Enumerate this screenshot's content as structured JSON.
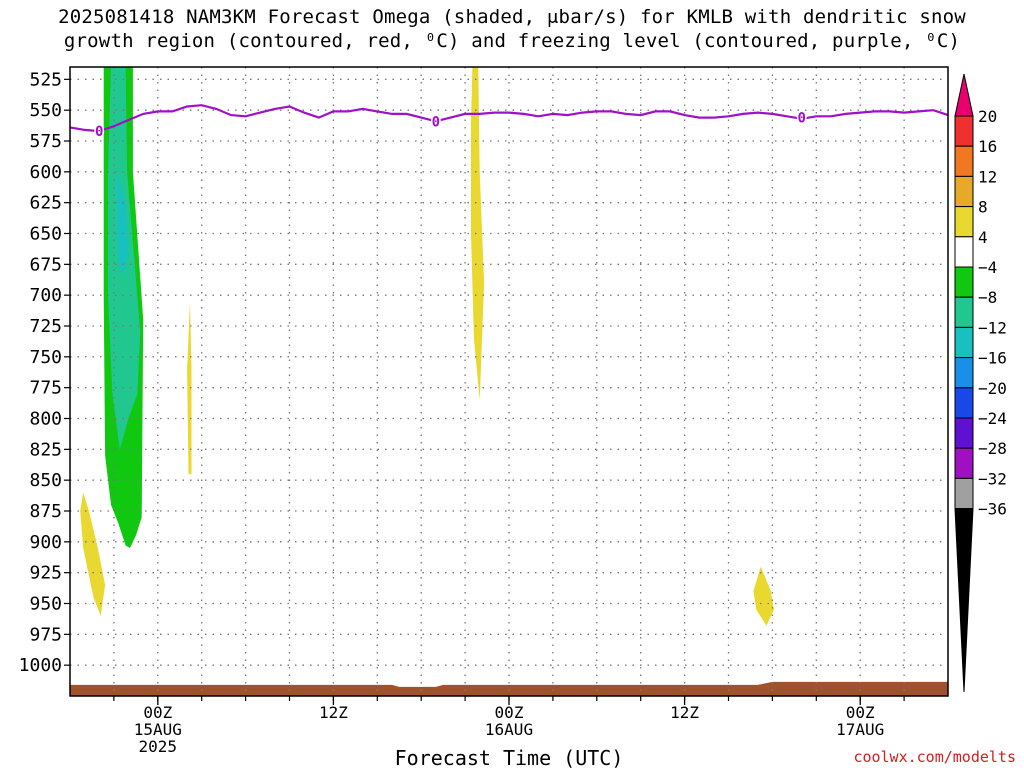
{
  "header": {
    "title_line1": "2025081418 NAM3KM Forecast Omega (shaded, μbar/s) for KMLB with dendritic snow",
    "title_line2": "growth region (contoured, red, ⁰C) and freezing level (contoured, purple, ⁰C)"
  },
  "footer": {
    "credit": "coolwx.com/modelts"
  },
  "chart_data": {
    "type": "time-height",
    "xlabel": "Forecast Time (UTC)",
    "x_range_hours": [
      0,
      60
    ],
    "x_ticks": [
      {
        "hour": 6,
        "label": "00Z",
        "sub1": "15AUG",
        "sub2": "2025"
      },
      {
        "hour": 18,
        "label": "12Z",
        "sub1": "",
        "sub2": ""
      },
      {
        "hour": 30,
        "label": "00Z",
        "sub1": "16AUG",
        "sub2": ""
      },
      {
        "hour": 42,
        "label": "12Z",
        "sub1": "",
        "sub2": ""
      },
      {
        "hour": 54,
        "label": "00Z",
        "sub1": "17AUG",
        "sub2": ""
      }
    ],
    "y_range_hPa": [
      1025,
      515
    ],
    "y_ticks": [
      525,
      550,
      575,
      600,
      625,
      650,
      675,
      700,
      725,
      750,
      775,
      800,
      825,
      850,
      875,
      900,
      925,
      950,
      975,
      1000
    ],
    "grid": true,
    "colorbar": {
      "labels": [
        "20",
        "16",
        "12",
        "8",
        "4",
        "−4",
        "−8",
        "−12",
        "−16",
        "−20",
        "−24",
        "−28",
        "−32",
        "−36"
      ],
      "colors": [
        "#e8006e",
        "#f03030",
        "#f07820",
        "#e8a828",
        "#e8d830",
        "#ffffff",
        "#10c810",
        "#20c890",
        "#18c0c0",
        "#1890e8",
        "#1848e8",
        "#6010d0",
        "#a010c0",
        "#a0a0a0",
        "#000000"
      ]
    },
    "freezing_level": {
      "label": "0",
      "points_hour_hPa": [
        [
          0,
          564
        ],
        [
          1,
          566
        ],
        [
          2,
          567
        ],
        [
          3,
          563
        ],
        [
          4,
          558
        ],
        [
          5,
          553
        ],
        [
          6,
          551
        ],
        [
          7,
          551
        ],
        [
          8,
          547
        ],
        [
          9,
          546
        ],
        [
          10,
          549
        ],
        [
          11,
          554
        ],
        [
          12,
          555
        ],
        [
          13,
          552
        ],
        [
          14,
          549
        ],
        [
          15,
          547
        ],
        [
          16,
          552
        ],
        [
          17,
          556
        ],
        [
          18,
          551
        ],
        [
          19,
          551
        ],
        [
          20,
          549
        ],
        [
          21,
          551
        ],
        [
          22,
          553
        ],
        [
          23,
          553
        ],
        [
          24,
          556
        ],
        [
          25,
          559
        ],
        [
          26,
          556
        ],
        [
          27,
          553
        ],
        [
          28,
          553
        ],
        [
          29,
          552
        ],
        [
          30,
          552
        ],
        [
          31,
          553
        ],
        [
          32,
          555
        ],
        [
          33,
          553
        ],
        [
          34,
          554
        ],
        [
          35,
          552
        ],
        [
          36,
          551
        ],
        [
          37,
          551
        ],
        [
          38,
          553
        ],
        [
          39,
          554
        ],
        [
          40,
          551
        ],
        [
          41,
          551
        ],
        [
          42,
          554
        ],
        [
          43,
          556
        ],
        [
          44,
          556
        ],
        [
          45,
          555
        ],
        [
          46,
          553
        ],
        [
          47,
          552
        ],
        [
          48,
          553
        ],
        [
          49,
          555
        ],
        [
          50,
          557
        ],
        [
          51,
          555
        ],
        [
          52,
          555
        ],
        [
          53,
          553
        ],
        [
          54,
          552
        ],
        [
          55,
          551
        ],
        [
          56,
          551
        ],
        [
          57,
          552
        ],
        [
          58,
          551
        ],
        [
          59,
          550
        ],
        [
          60,
          554
        ]
      ],
      "label_positions_hour_hPa": [
        [
          2,
          567
        ],
        [
          25,
          559
        ],
        [
          50,
          556
        ]
      ]
    },
    "omega_regions": [
      {
        "name": "green-column",
        "value_range": "-8 to -4",
        "color": "#10c810",
        "polygon_hour_hPa": [
          [
            2.3,
            515
          ],
          [
            4.3,
            515
          ],
          [
            4.3,
            600
          ],
          [
            5.0,
            720
          ],
          [
            4.9,
            880
          ],
          [
            4.5,
            895
          ],
          [
            4.1,
            905
          ],
          [
            3.8,
            903
          ],
          [
            3.3,
            885
          ],
          [
            2.8,
            870
          ],
          [
            2.4,
            830
          ],
          [
            2.3,
            700
          ]
        ]
      },
      {
        "name": "teal-column",
        "value_range": "-12 to -8",
        "color": "#20c890",
        "polygon_hour_hPa": [
          [
            2.8,
            515
          ],
          [
            3.8,
            515
          ],
          [
            3.9,
            600
          ],
          [
            4.8,
            730
          ],
          [
            4.6,
            780
          ],
          [
            4.0,
            800
          ],
          [
            3.4,
            825
          ],
          [
            2.9,
            780
          ],
          [
            2.6,
            700
          ],
          [
            2.6,
            600
          ]
        ]
      },
      {
        "name": "cyan-core",
        "value_range": "-16 to -12",
        "color": "#18c0c0",
        "polygon_hour_hPa": [
          [
            3.2,
            600
          ],
          [
            3.8,
            625
          ],
          [
            4.0,
            665
          ],
          [
            3.6,
            685
          ],
          [
            3.3,
            670
          ],
          [
            3.2,
            640
          ]
        ]
      },
      {
        "name": "yellow-sliver-1",
        "value_range": "4 to 8",
        "color": "#e8d830",
        "polygon_hour_hPa": [
          [
            8.2,
            705
          ],
          [
            8.3,
            760
          ],
          [
            8.3,
            845
          ],
          [
            8.1,
            845
          ],
          [
            8.0,
            760
          ]
        ]
      },
      {
        "name": "yellow-lower-left",
        "value_range": "4 to 8",
        "color": "#e8d830",
        "polygon_hour_hPa": [
          [
            0.9,
            860
          ],
          [
            1.3,
            875
          ],
          [
            1.9,
            905
          ],
          [
            2.4,
            935
          ],
          [
            2.1,
            960
          ],
          [
            1.6,
            945
          ],
          [
            0.9,
            905
          ],
          [
            0.7,
            875
          ]
        ]
      },
      {
        "name": "yellow-column-16aug",
        "value_range": "4 to 8",
        "color": "#e8d830",
        "polygon_hour_hPa": [
          [
            27.5,
            515
          ],
          [
            27.9,
            515
          ],
          [
            28.0,
            600
          ],
          [
            28.3,
            690
          ],
          [
            28.0,
            785
          ],
          [
            27.6,
            735
          ],
          [
            27.4,
            650
          ],
          [
            27.4,
            560
          ]
        ]
      },
      {
        "name": "yellow-blob-right",
        "value_range": "4 to 8",
        "color": "#e8d830",
        "polygon_hour_hPa": [
          [
            47.2,
            920
          ],
          [
            47.9,
            940
          ],
          [
            48.1,
            955
          ],
          [
            47.6,
            968
          ],
          [
            46.9,
            955
          ],
          [
            46.7,
            940
          ]
        ]
      }
    ],
    "terrain": {
      "color": "#a0522d",
      "top_hPa": 1016
    }
  }
}
